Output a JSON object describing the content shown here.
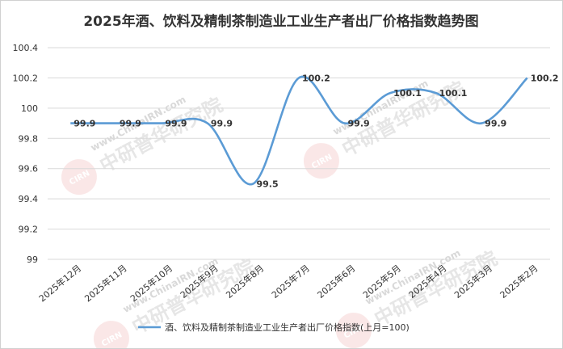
{
  "chart_data": {
    "type": "line",
    "title": "2025年酒、饮料及精制茶制造业工业生产者出厂价格指数趋势图",
    "categories": [
      "2025年12月",
      "2025年11月",
      "2025年10月",
      "2025年9月",
      "2025年8月",
      "2025年7月",
      "2025年6月",
      "2025年5月",
      "2025年4月",
      "2025年3月",
      "2025年2月"
    ],
    "series": [
      {
        "name": "酒、饮料及精制茶制造业工业生产者出厂价格指数(上月=100)",
        "values": [
          99.9,
          99.9,
          99.9,
          99.9,
          99.5,
          100.2,
          99.9,
          100.1,
          100.1,
          99.9,
          100.2
        ],
        "labels": [
          "99.9",
          "99.9",
          "99.9",
          "99.9",
          "99.5",
          "100.2",
          "99.9",
          "100.1",
          "100.1",
          "99.9",
          "100.2"
        ],
        "color": "#5b9bd5"
      }
    ],
    "yticks": [
      "99",
      "99.2",
      "99.4",
      "99.6",
      "99.8",
      "100",
      "100.2",
      "100.4"
    ],
    "yticks_values": [
      99,
      99.2,
      99.4,
      99.6,
      99.8,
      100,
      100.2,
      100.4
    ],
    "ylim": [
      99,
      100.4
    ],
    "xlabel": "",
    "ylabel": "",
    "grid": true,
    "legend_position": "bottom",
    "smooth": true,
    "watermark": {
      "text": "www.ChinaIRN.com",
      "brand": "中研普华研究院",
      "logo": "CIRN"
    }
  }
}
